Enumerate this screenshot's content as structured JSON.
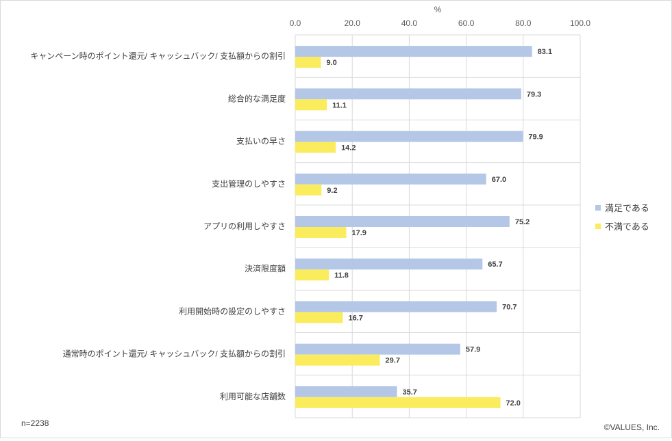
{
  "chart_data": {
    "type": "bar",
    "orientation": "horizontal",
    "axis_unit": "%",
    "xlim": [
      0,
      100
    ],
    "ticks": [
      "0.0",
      "20.0",
      "40.0",
      "60.0",
      "80.0",
      "100.0"
    ],
    "tick_values": [
      0,
      20,
      40,
      60,
      80,
      100
    ],
    "grid": true,
    "legend_position": "right",
    "categories": [
      "キャンペーン時のポイント還元/ キャッシュバック/ 支払額からの割引",
      "総合的な満足度",
      "支払いの早さ",
      "支出管理のしやすさ",
      "アプリの利用しやすさ",
      "決済限度額",
      "利用開始時の設定のしやすさ",
      "通常時のポイント還元/ キャッシュバック/ 支払額からの割引",
      "利用可能な店舗数"
    ],
    "series": [
      {
        "name": "満足である",
        "color": "#b4c7e7",
        "values": [
          83.1,
          79.3,
          79.9,
          67.0,
          75.2,
          65.7,
          70.7,
          57.9,
          35.7
        ],
        "labels": [
          "83.1",
          "79.3",
          "79.9",
          "67.0",
          "75.2",
          "65.7",
          "70.7",
          "57.9",
          "35.7"
        ]
      },
      {
        "name": "不満である",
        "color": "#fbec5d",
        "values": [
          9.0,
          11.1,
          14.2,
          9.2,
          17.9,
          11.8,
          16.7,
          29.7,
          72.0
        ],
        "labels": [
          "9.0",
          "11.1",
          "14.2",
          "9.2",
          "17.9",
          "11.8",
          "16.7",
          "29.7",
          "72.0"
        ]
      }
    ]
  },
  "footer": {
    "sample_size": "n=2238",
    "copyright": "©VALUES, Inc."
  }
}
